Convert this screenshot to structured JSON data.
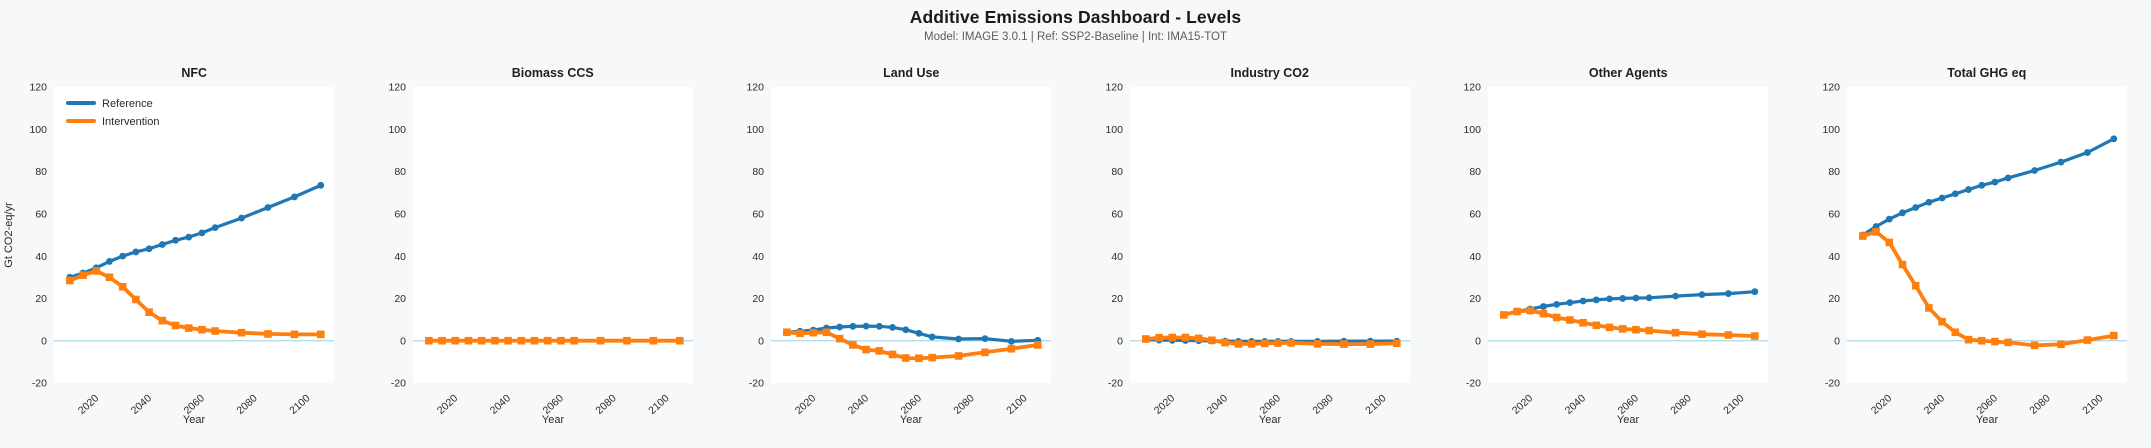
{
  "header": {
    "title": "Additive Emissions Dashboard - Levels",
    "subtitle": "Model: IMAGE 3.0.1  |  Ref: SSP2-Baseline  |  Int: IMA15-TOT"
  },
  "colors": {
    "reference": "#1f77b4",
    "intervention": "#ff7f0e",
    "zero_line": "#add8e6",
    "figure_background": "#f7f8fa",
    "plot_background": "#ffffff"
  },
  "legend": {
    "entries": [
      "Reference",
      "Intervention"
    ],
    "position": "upper-left",
    "shown_on_panel": "NFC"
  },
  "chart_data": [
    {
      "type": "line",
      "title": "NFC",
      "xlabel": "Year",
      "ylabel": "Gt CO2-eq/yr",
      "xlim": [
        2004,
        2110
      ],
      "ylim": [
        -20,
        120
      ],
      "xticks": [
        2020,
        2040,
        2060,
        2080,
        2100
      ],
      "yticks": [
        -20,
        0,
        20,
        40,
        60,
        80,
        100,
        120
      ],
      "legend": true,
      "x": [
        2010,
        2015,
        2020,
        2025,
        2030,
        2035,
        2040,
        2045,
        2050,
        2055,
        2060,
        2065,
        2075,
        2085,
        2095,
        2105
      ],
      "series": [
        {
          "name": "Reference",
          "color": "#1f77b4",
          "marker": "circle",
          "values": [
            30,
            32,
            34.5,
            37.5,
            40,
            42,
            43.5,
            45.5,
            47.5,
            49,
            51,
            53.5,
            58,
            63,
            68,
            73.5
          ]
        },
        {
          "name": "Intervention",
          "color": "#ff7f0e",
          "marker": "square",
          "values": [
            28.5,
            31,
            33,
            30,
            25.5,
            19.5,
            13.5,
            9.5,
            7.2,
            6,
            5.2,
            4.6,
            3.8,
            3.2,
            3,
            3
          ]
        }
      ]
    },
    {
      "type": "line",
      "title": "Biomass CCS",
      "xlabel": "Year",
      "ylabel": "",
      "xlim": [
        2004,
        2110
      ],
      "ylim": [
        -20,
        120
      ],
      "xticks": [
        2020,
        2040,
        2060,
        2080,
        2100
      ],
      "yticks": [
        -20,
        0,
        20,
        40,
        60,
        80,
        100,
        120
      ],
      "legend": false,
      "x": [
        2010,
        2015,
        2020,
        2025,
        2030,
        2035,
        2040,
        2045,
        2050,
        2055,
        2060,
        2065,
        2075,
        2085,
        2095,
        2105
      ],
      "series": [
        {
          "name": "Reference",
          "color": "#1f77b4",
          "marker": "circle",
          "values": [
            0,
            0,
            0,
            0,
            0,
            0,
            0,
            0,
            0,
            0,
            0,
            0,
            0,
            0,
            0,
            0
          ]
        },
        {
          "name": "Intervention",
          "color": "#ff7f0e",
          "marker": "square",
          "values": [
            0,
            0,
            0,
            0,
            0,
            0,
            0,
            0,
            0,
            0,
            0,
            0,
            0,
            0,
            0,
            0
          ]
        }
      ]
    },
    {
      "type": "line",
      "title": "Land Use",
      "xlabel": "Year",
      "ylabel": "",
      "xlim": [
        2004,
        2110
      ],
      "ylim": [
        -20,
        120
      ],
      "xticks": [
        2020,
        2040,
        2060,
        2080,
        2100
      ],
      "yticks": [
        -20,
        0,
        20,
        40,
        60,
        80,
        100,
        120
      ],
      "legend": false,
      "x": [
        2010,
        2015,
        2020,
        2025,
        2030,
        2035,
        2040,
        2045,
        2050,
        2055,
        2060,
        2065,
        2075,
        2085,
        2095,
        2105
      ],
      "series": [
        {
          "name": "Reference",
          "color": "#1f77b4",
          "marker": "circle",
          "values": [
            4,
            4.5,
            5,
            6,
            6.5,
            6.8,
            6.9,
            6.8,
            6.3,
            5.2,
            3.5,
            1.8,
            0.8,
            1.0,
            -0.3,
            0.2
          ]
        },
        {
          "name": "Intervention",
          "color": "#ff7f0e",
          "marker": "square",
          "values": [
            4,
            3.5,
            3.8,
            4,
            1,
            -2,
            -4.2,
            -4.8,
            -6.5,
            -8.2,
            -8.3,
            -8,
            -7.2,
            -5.5,
            -3.8,
            -2
          ]
        }
      ]
    },
    {
      "type": "line",
      "title": "Industry CO2",
      "xlabel": "Year",
      "ylabel": "",
      "xlim": [
        2004,
        2110
      ],
      "ylim": [
        -20,
        120
      ],
      "xticks": [
        2020,
        2040,
        2060,
        2080,
        2100
      ],
      "yticks": [
        -20,
        0,
        20,
        40,
        60,
        80,
        100,
        120
      ],
      "legend": false,
      "x": [
        2010,
        2015,
        2020,
        2025,
        2030,
        2035,
        2040,
        2045,
        2050,
        2055,
        2060,
        2065,
        2075,
        2085,
        2095,
        2105
      ],
      "series": [
        {
          "name": "Reference",
          "color": "#1f77b4",
          "marker": "circle",
          "values": [
            0.5,
            0.3,
            0.2,
            0.1,
            0,
            -0.1,
            -0.2,
            -0.3,
            -0.3,
            -0.3,
            -0.3,
            -0.3,
            -0.3,
            -0.2,
            -0.2,
            -0.2
          ]
        },
        {
          "name": "Intervention",
          "color": "#ff7f0e",
          "marker": "square",
          "values": [
            0.8,
            1.4,
            1.5,
            1.5,
            1.1,
            0.2,
            -0.9,
            -1.5,
            -1.5,
            -1.3,
            -1.1,
            -1.0,
            -1.5,
            -1.6,
            -1.6,
            -1.2
          ]
        }
      ]
    },
    {
      "type": "line",
      "title": "Other Agents",
      "xlabel": "Year",
      "ylabel": "",
      "xlim": [
        2004,
        2110
      ],
      "ylim": [
        -20,
        120
      ],
      "xticks": [
        2020,
        2040,
        2060,
        2080,
        2100
      ],
      "yticks": [
        -20,
        0,
        20,
        40,
        60,
        80,
        100,
        120
      ],
      "legend": false,
      "x": [
        2010,
        2015,
        2020,
        2025,
        2030,
        2035,
        2040,
        2045,
        2050,
        2055,
        2060,
        2065,
        2075,
        2085,
        2095,
        2105
      ],
      "series": [
        {
          "name": "Reference",
          "color": "#1f77b4",
          "marker": "circle",
          "values": [
            12.2,
            13.8,
            15,
            16.2,
            17.2,
            18,
            18.8,
            19.3,
            19.8,
            20,
            20.2,
            20.3,
            21.1,
            21.8,
            22.3,
            23.2
          ]
        },
        {
          "name": "Intervention",
          "color": "#ff7f0e",
          "marker": "square",
          "values": [
            12.2,
            13.8,
            14.3,
            12.8,
            11,
            9.8,
            8.5,
            7.3,
            6.3,
            5.6,
            5.2,
            4.8,
            3.8,
            3.1,
            2.7,
            2.2
          ]
        }
      ]
    },
    {
      "type": "line",
      "title": "Total GHG eq",
      "xlabel": "Year",
      "ylabel": "",
      "xlim": [
        2004,
        2110
      ],
      "ylim": [
        -20,
        120
      ],
      "xticks": [
        2020,
        2040,
        2060,
        2080,
        2100
      ],
      "yticks": [
        -20,
        0,
        20,
        40,
        60,
        80,
        100,
        120
      ],
      "legend": false,
      "x": [
        2010,
        2015,
        2020,
        2025,
        2030,
        2035,
        2040,
        2045,
        2050,
        2055,
        2060,
        2065,
        2075,
        2085,
        2095,
        2105
      ],
      "series": [
        {
          "name": "Reference",
          "color": "#1f77b4",
          "marker": "circle",
          "values": [
            50,
            54,
            57.5,
            60.5,
            63,
            65.5,
            67.5,
            69.5,
            71.5,
            73.5,
            75,
            77,
            80.5,
            84.5,
            89,
            95.5
          ]
        },
        {
          "name": "Intervention",
          "color": "#ff7f0e",
          "marker": "square",
          "values": [
            49.5,
            51.5,
            46.5,
            36,
            26,
            15.5,
            9,
            4,
            0.5,
            0,
            -0.4,
            -0.8,
            -2.2,
            -1.7,
            0.3,
            2.4
          ]
        }
      ]
    }
  ]
}
